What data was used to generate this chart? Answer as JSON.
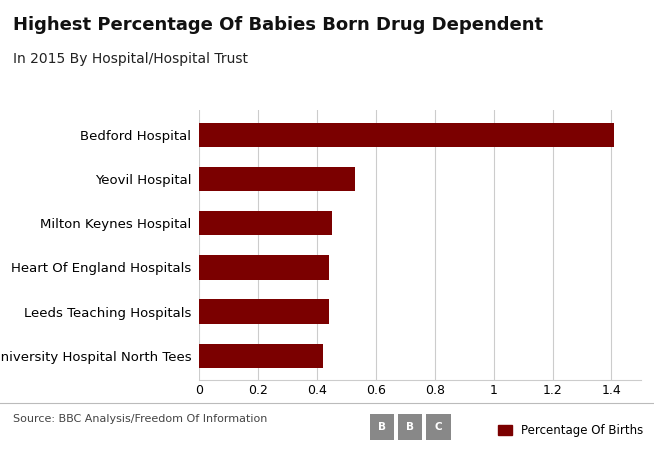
{
  "title": "Highest Percentage Of Babies Born Drug Dependent",
  "subtitle": "In 2015 By Hospital/Hospital Trust",
  "hospitals": [
    "University Hospital North Tees",
    "Leeds Teaching Hospitals",
    "Heart Of England Hospitals",
    "Milton Keynes Hospital",
    "Yeovil Hospital",
    "Bedford Hospital"
  ],
  "values": [
    0.42,
    0.44,
    0.44,
    0.45,
    0.53,
    1.41
  ],
  "bar_color": "#7B0000",
  "background_color": "#FFFFFF",
  "xlim": [
    0,
    1.5
  ],
  "xticks": [
    0,
    0.2,
    0.4,
    0.6,
    0.8,
    1.0,
    1.2,
    1.4
  ],
  "xtick_labels": [
    "0",
    "0.2",
    "0.4",
    "0.6",
    "0.8",
    "1",
    "1.2",
    "1.4"
  ],
  "source_text": "Source: BBC Analysis/Freedom Of Information",
  "legend_label": "Percentage Of Births",
  "title_fontsize": 13,
  "subtitle_fontsize": 10,
  "label_fontsize": 9.5,
  "tick_fontsize": 9,
  "grid_color": "#CCCCCC",
  "bbc_box_color": "#888888"
}
